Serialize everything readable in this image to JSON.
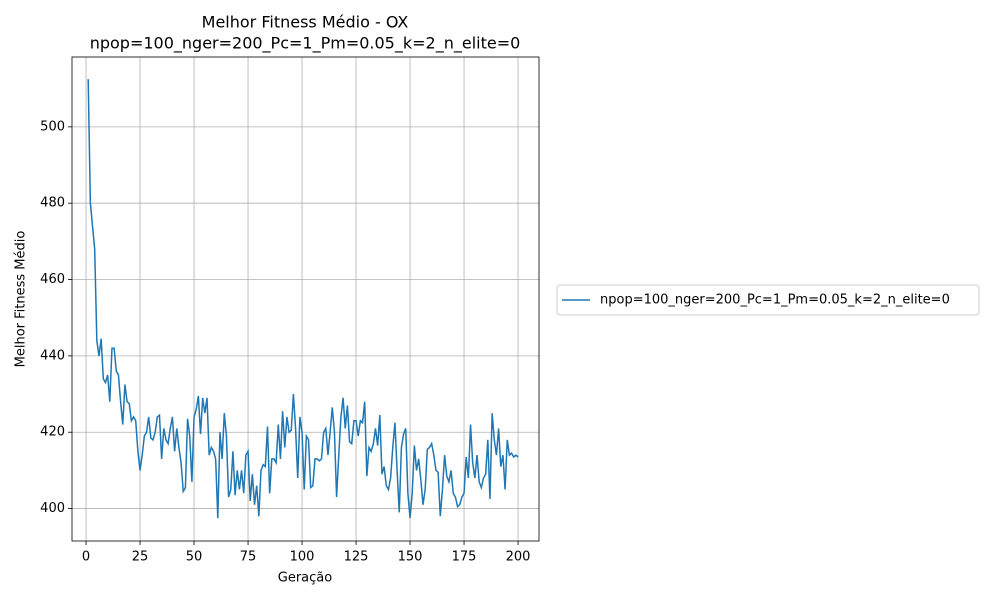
{
  "chart_data": {
    "type": "line",
    "title": "Melhor Fitness Médio - OX",
    "subtitle": "npop=100_nger=200_Pc=1_Pm=0.05_k=2_n_elite=0",
    "xlabel": "Geração",
    "ylabel": "Melhor Fitness Médio",
    "x": [
      1,
      2,
      3,
      4,
      5,
      6,
      7,
      8,
      9,
      10,
      11,
      12,
      13,
      14,
      15,
      16,
      17,
      18,
      19,
      20,
      21,
      22,
      23,
      24,
      25,
      26,
      27,
      28,
      29,
      30,
      31,
      32,
      33,
      34,
      35,
      36,
      37,
      38,
      39,
      40,
      41,
      42,
      43,
      44,
      45,
      46,
      47,
      48,
      49,
      50,
      51,
      52,
      53,
      54,
      55,
      56,
      57,
      58,
      59,
      60,
      61,
      62,
      63,
      64,
      65,
      66,
      67,
      68,
      69,
      70,
      71,
      72,
      73,
      74,
      75,
      76,
      77,
      78,
      79,
      80,
      81,
      82,
      83,
      84,
      85,
      86,
      87,
      88,
      89,
      90,
      91,
      92,
      93,
      94,
      95,
      96,
      97,
      98,
      99,
      100,
      101,
      102,
      103,
      104,
      105,
      106,
      107,
      108,
      109,
      110,
      111,
      112,
      113,
      114,
      115,
      116,
      117,
      118,
      119,
      120,
      121,
      122,
      123,
      124,
      125,
      126,
      127,
      128,
      129,
      130,
      131,
      132,
      133,
      134,
      135,
      136,
      137,
      138,
      139,
      140,
      141,
      142,
      143,
      144,
      145,
      146,
      147,
      148,
      149,
      150,
      151,
      152,
      153,
      154,
      155,
      156,
      157,
      158,
      159,
      160,
      161,
      162,
      163,
      164,
      165,
      166,
      167,
      168,
      169,
      170,
      171,
      172,
      173,
      174,
      175,
      176,
      177,
      178,
      179,
      180,
      181,
      182,
      183,
      184,
      185,
      186,
      187,
      188,
      189,
      190,
      191,
      192,
      193,
      194,
      195,
      196,
      197,
      198,
      199,
      200
    ],
    "series": [
      {
        "name": "npop=100_nger=200_Pc=1_Pm=0.05_k=2_n_elite=0",
        "color": "#1f77b4",
        "values": [
          512.5,
          480,
          474,
          468,
          444,
          440,
          444.5,
          434,
          433,
          435,
          428,
          442,
          442,
          436,
          435,
          428,
          422,
          432.5,
          428,
          427.5,
          423,
          424,
          423,
          415,
          410,
          414,
          419,
          420,
          424,
          418.5,
          418,
          420,
          424,
          424.5,
          413,
          421,
          418,
          417,
          421,
          424,
          415,
          421,
          416,
          412,
          404.5,
          405.5,
          423.5,
          419,
          407,
          424,
          426,
          429.5,
          419.5,
          429,
          425,
          429,
          414,
          416,
          415,
          413,
          397.5,
          420,
          413,
          425,
          419,
          403,
          405,
          415,
          403.5,
          410,
          405,
          410,
          404,
          414,
          415,
          402,
          409,
          401,
          406,
          398,
          410,
          411.5,
          411,
          421.5,
          404,
          413,
          413,
          412,
          422,
          413,
          425.5,
          416,
          424,
          420,
          420.5,
          430,
          421,
          408,
          424,
          420,
          405,
          419,
          418,
          405.5,
          406,
          413,
          413,
          412.5,
          413,
          420,
          421,
          414,
          420,
          426.5,
          420,
          403,
          414,
          424,
          429,
          421,
          427,
          417.5,
          417,
          423,
          423,
          419,
          423,
          422.5,
          428,
          408.5,
          416,
          415,
          417,
          421,
          416.5,
          424.5,
          409,
          411,
          406,
          405,
          408,
          416,
          422.5,
          410,
          399,
          416,
          419.5,
          421,
          404,
          397.5,
          404,
          416.5,
          410,
          413,
          407.5,
          401,
          405,
          415.5,
          416,
          417,
          414,
          410,
          409.5,
          398,
          405,
          414,
          408.5,
          407,
          410,
          404,
          403,
          400.5,
          401,
          403,
          404,
          413.5,
          408,
          422,
          412,
          408,
          414,
          407,
          405.5,
          408,
          409,
          418,
          402.5,
          425,
          418,
          414,
          421,
          411,
          414,
          405,
          418,
          414,
          414.5,
          413.5,
          414,
          413.5
        ]
      }
    ],
    "xlim": [
      -6.5,
      209.7
    ],
    "ylim": [
      391.5,
      518.3
    ],
    "xticks": [
      0,
      25,
      50,
      75,
      100,
      125,
      150,
      175,
      200
    ],
    "yticks": [
      400,
      420,
      440,
      460,
      480,
      500
    ],
    "grid": true,
    "legend": "right"
  }
}
